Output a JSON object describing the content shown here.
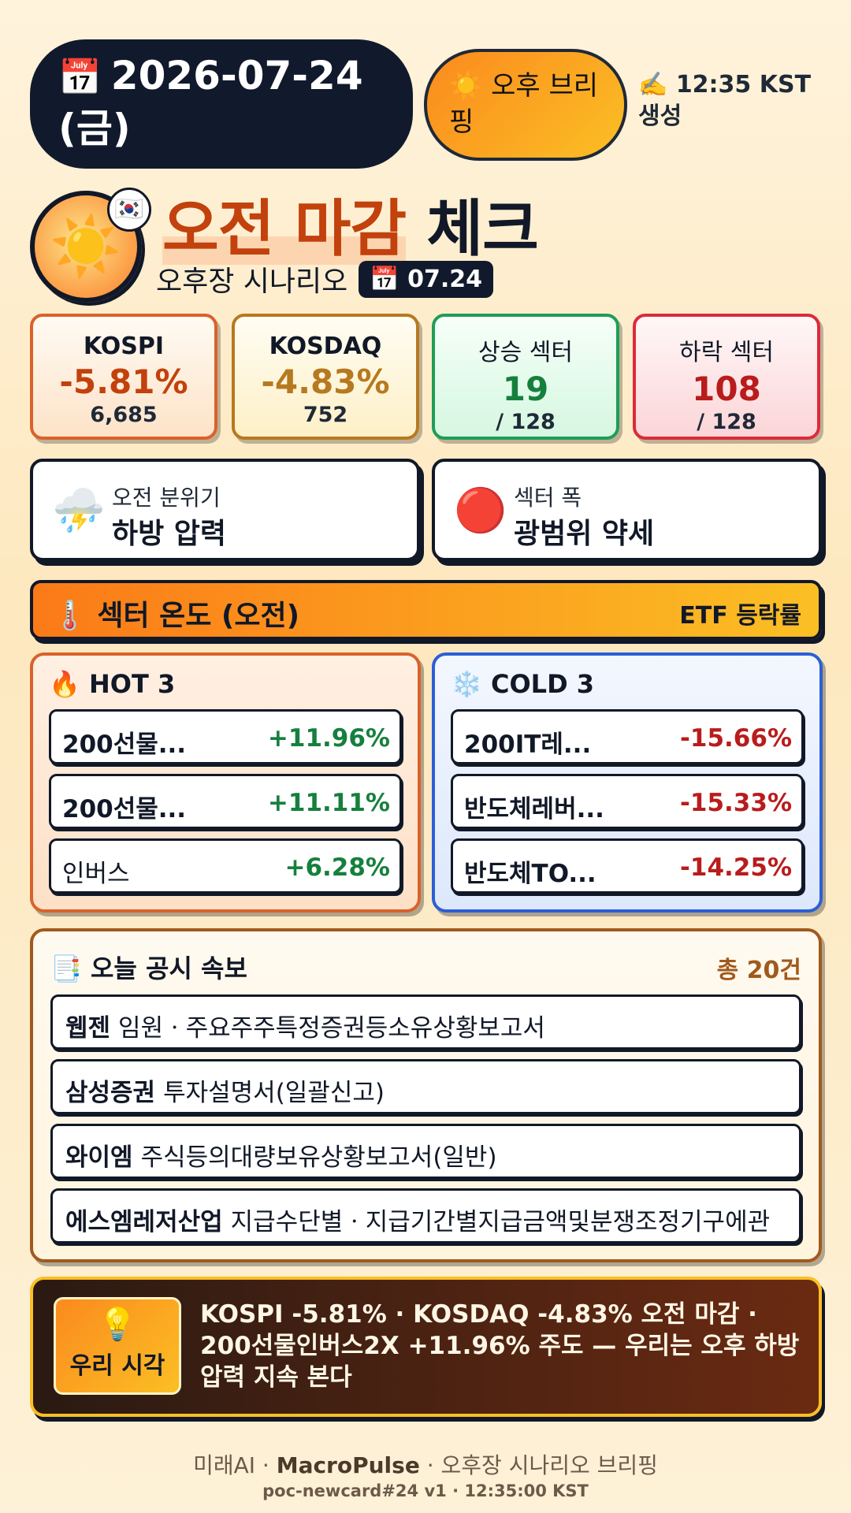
{
  "header": {
    "date_icon": "📅",
    "date": "2026-07-24",
    "weekday": "(금)",
    "brief_icon": "☀️",
    "brief_label": "오후 브리핑",
    "generated_icon": "✍️",
    "generated": "12:35 KST 생성"
  },
  "hero": {
    "badge_icon": "☀️",
    "flag_icon": "🇰🇷",
    "title_accent": "오전 마감",
    "title_rest": "체크",
    "subtitle": "오후장 시나리오",
    "mini_date_icon": "📅",
    "mini_date": "07.24"
  },
  "stats": [
    {
      "label": "KOSPI",
      "value": "-5.81%",
      "sub": "6,685"
    },
    {
      "label": "KOSDAQ",
      "value": "-4.83%",
      "sub": "752"
    },
    {
      "label": "상승 섹터",
      "value": "19",
      "sub": "/ 128"
    },
    {
      "label": "하락 섹터",
      "value": "108",
      "sub": "/ 128"
    }
  ],
  "mood": [
    {
      "icon": "⛈️",
      "key": "오전 분위기",
      "value": "하방 압력"
    },
    {
      "icon": "🔴",
      "key": "섹터 폭",
      "value": "광범위 약세"
    }
  ],
  "section": {
    "icon": "🌡️",
    "title": "섹터 온도 (오전)",
    "right": "ETF 등락률"
  },
  "hot": {
    "icon": "🔥",
    "title": "HOT 3",
    "items": [
      {
        "name": "200선물...",
        "pct": "+11.96%"
      },
      {
        "name": "200선물...",
        "pct": "+11.11%"
      },
      {
        "name": "인버스",
        "pct": "+6.28%"
      }
    ]
  },
  "cold": {
    "icon": "❄️",
    "title": "COLD 3",
    "items": [
      {
        "name": "200IT레...",
        "pct": "-15.66%"
      },
      {
        "name": "반도체레버...",
        "pct": "-15.33%"
      },
      {
        "name": "반도체TO...",
        "pct": "-14.25%"
      }
    ]
  },
  "disclosure": {
    "icon": "📑",
    "title": "오늘 공시 속보",
    "count": "총 20건",
    "items": [
      {
        "company": "웹젠",
        "title": "임원ㆍ주요주주특정증권등소유상황보고서"
      },
      {
        "company": "삼성증권",
        "title": "투자설명서(일괄신고)"
      },
      {
        "company": "와이엠",
        "title": "주식등의대량보유상황보고서(일반)"
      },
      {
        "company": "에스엠레저산업",
        "title": "지급수단별ㆍ지급기간별지급금액및분쟁조정기구에관"
      }
    ]
  },
  "insight": {
    "icon": "💡",
    "label": "우리 시각",
    "text": "KOSPI -5.81% · KOSDAQ -4.83% 오전 마감 · 200선물인버스2X +11.96% 주도 — 우리는 오후 하방 압력 지속 본다"
  },
  "footer": {
    "brand_prefix": "미래AI · ",
    "brand": "MacroPulse",
    "brand_suffix": " · 오후장 시나리오 브리핑",
    "meta": "poc-newcard#24 v1 · 12:35:00 KST"
  },
  "colors": {
    "accent": "#fb8a1e",
    "dark": "#111a2c",
    "up": "#15803d",
    "down": "#b91c1c"
  }
}
